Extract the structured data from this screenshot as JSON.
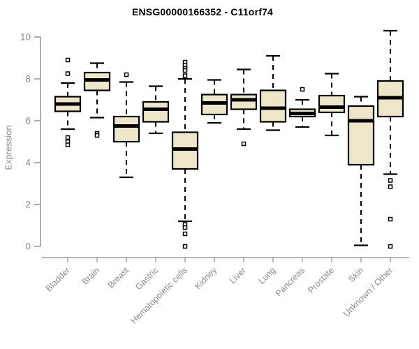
{
  "title": "ENSG00000166352 - C11orf74",
  "chart_data": {
    "type": "boxplot",
    "title": "ENSG00000166352 - C11orf74",
    "xlabel": "",
    "ylabel": "Expression",
    "ylim": [
      0,
      10
    ],
    "yticks": [
      0,
      2,
      4,
      6,
      8,
      10
    ],
    "grid": false,
    "legend": "none",
    "box_fill_color": "#EDE6C8",
    "box_stroke_color": "#000000",
    "median_color": "#000000",
    "whisker_color": "#000000",
    "axis_color": "#8C8C8C",
    "title_color": "#000000",
    "background_color": "#FFFFFF",
    "categories": [
      "Bladder",
      "Brain",
      "Breast",
      "Gastric",
      "Hematopoietic cells",
      "Kidney",
      "Liver",
      "Lung",
      "Pancreas",
      "Prostate",
      "Skin",
      "Unknown / Other"
    ],
    "series": [
      {
        "category": "Bladder",
        "whisker_low": 5.6,
        "q1": 6.45,
        "median": 6.8,
        "q3": 7.15,
        "whisker_high": 7.8,
        "outliers": [
          8.9,
          8.25,
          5.2,
          5.0,
          4.85
        ]
      },
      {
        "category": "Brain",
        "whisker_low": 6.15,
        "q1": 7.45,
        "median": 7.95,
        "q3": 8.3,
        "whisker_high": 8.75,
        "outliers": [
          5.4,
          5.3
        ]
      },
      {
        "category": "Breast",
        "whisker_low": 3.3,
        "q1": 5.0,
        "median": 5.75,
        "q3": 6.2,
        "whisker_high": 7.85,
        "outliers": [
          8.2
        ]
      },
      {
        "category": "Gastric",
        "whisker_low": 5.4,
        "q1": 5.95,
        "median": 6.55,
        "q3": 6.9,
        "whisker_high": 7.65,
        "outliers": []
      },
      {
        "category": "Hematopoietic cells",
        "whisker_low": 1.2,
        "q1": 3.7,
        "median": 4.65,
        "q3": 5.45,
        "whisker_high": 8.0,
        "outliers": [
          8.8,
          8.65,
          8.5,
          8.4,
          8.15,
          1.05,
          0.9,
          0.6,
          0.0
        ]
      },
      {
        "category": "Kidney",
        "whisker_low": 5.9,
        "q1": 6.3,
        "median": 6.85,
        "q3": 7.25,
        "whisker_high": 7.95,
        "outliers": []
      },
      {
        "category": "Liver",
        "whisker_low": 5.6,
        "q1": 6.55,
        "median": 7.0,
        "q3": 7.25,
        "whisker_high": 8.45,
        "outliers": [
          4.9
        ]
      },
      {
        "category": "Lung",
        "whisker_low": 5.55,
        "q1": 5.95,
        "median": 6.6,
        "q3": 7.45,
        "whisker_high": 9.1,
        "outliers": []
      },
      {
        "category": "Pancreas",
        "whisker_low": 5.7,
        "q1": 6.2,
        "median": 6.35,
        "q3": 6.55,
        "whisker_high": 7.0,
        "outliers": [
          7.5
        ]
      },
      {
        "category": "Prostate",
        "whisker_low": 5.3,
        "q1": 6.4,
        "median": 6.65,
        "q3": 7.2,
        "whisker_high": 8.25,
        "outliers": []
      },
      {
        "category": "Skin",
        "whisker_low": 0.05,
        "q1": 3.9,
        "median": 6.0,
        "q3": 6.7,
        "whisker_high": 7.15,
        "outliers": []
      },
      {
        "category": "Unknown / Other",
        "whisker_low": 3.45,
        "q1": 6.2,
        "median": 7.1,
        "q3": 7.9,
        "whisker_high": 10.3,
        "outliers": [
          3.15,
          2.85,
          1.3,
          0.0
        ]
      }
    ]
  }
}
